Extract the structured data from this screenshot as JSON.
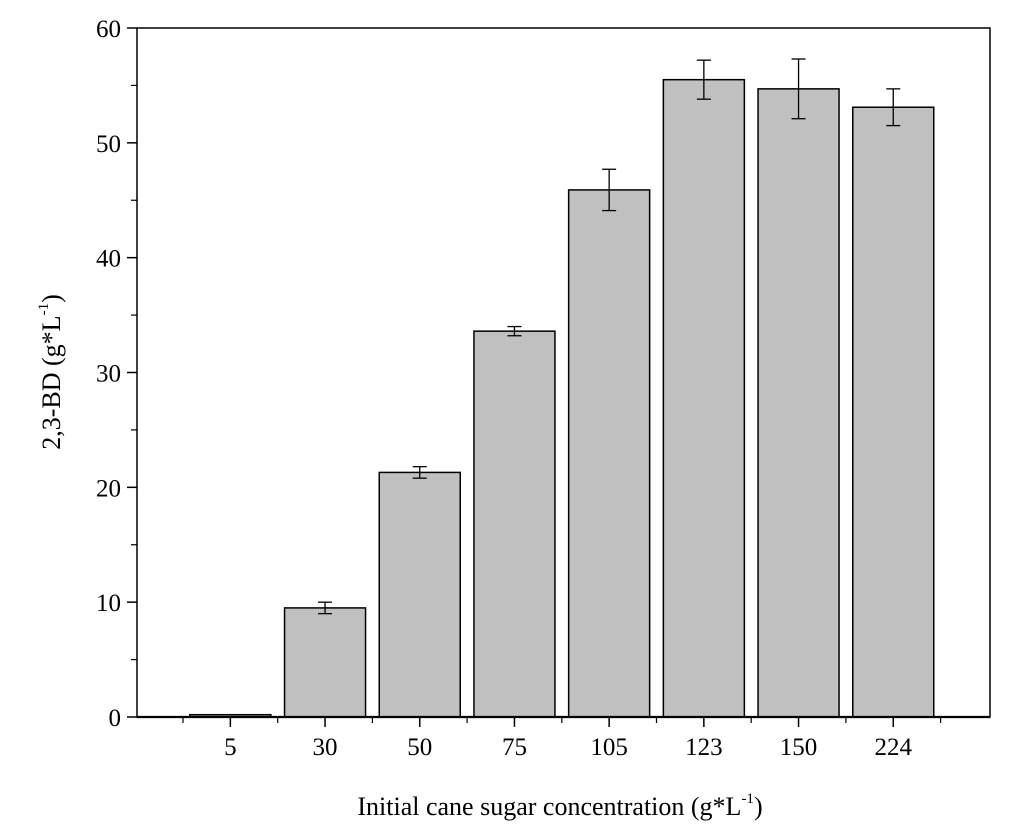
{
  "chart_data": {
    "type": "bar",
    "categories": [
      "5",
      "30",
      "50",
      "75",
      "105",
      "123",
      "150",
      "224"
    ],
    "values": [
      0.2,
      9.5,
      21.3,
      33.6,
      45.9,
      55.5,
      54.7,
      53.1
    ],
    "errors": [
      0.0,
      0.5,
      0.5,
      0.4,
      1.8,
      1.7,
      2.6,
      1.6
    ],
    "xlabel": {
      "main": "Initial cane sugar concentration (g*L",
      "sup": "-1",
      "close": ")"
    },
    "ylabel": {
      "main": "2,3-BD (g*L",
      "sup": "-1",
      "close": ")"
    },
    "ylim": [
      0,
      60
    ],
    "yticks": [
      0,
      10,
      20,
      30,
      40,
      50,
      60
    ],
    "bar_color": "#c0c0c0",
    "grid": false
  }
}
